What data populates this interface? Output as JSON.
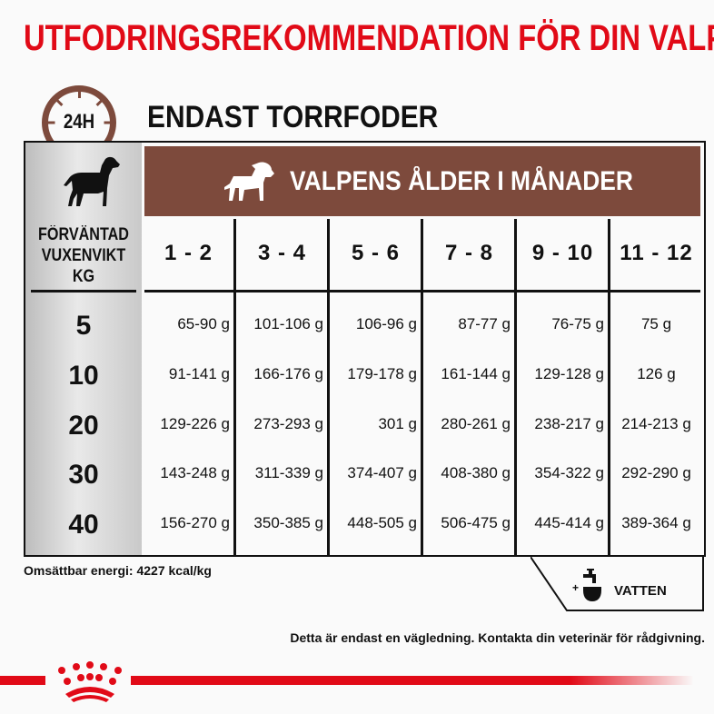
{
  "title": "UTFODRINGSREKOMMENDATION FÖR DIN VALP",
  "clock_label": "24H",
  "subtitle": "ENDAST TORRFODER",
  "header_band": "VALPENS ÅLDER I MÅNADER",
  "weight_header": [
    "FÖRVÄNTAD",
    "VUXENVIKT",
    "KG"
  ],
  "age_columns": [
    "1 - 2",
    "3 - 4",
    "5 - 6",
    "7 - 8",
    "9 - 10",
    "11 - 12"
  ],
  "rows": [
    {
      "weight": "5",
      "values": [
        "65-90 g",
        "101-106 g",
        "106-96 g",
        "87-77 g",
        "76-75 g",
        "75 g"
      ]
    },
    {
      "weight": "10",
      "values": [
        "91-141 g",
        "166-176 g",
        "179-178 g",
        "161-144 g",
        "129-128 g",
        "126 g"
      ]
    },
    {
      "weight": "20",
      "values": [
        "129-226 g",
        "273-293 g",
        "301 g",
        "280-261 g",
        "238-217 g",
        "214-213 g"
      ]
    },
    {
      "weight": "30",
      "values": [
        "143-248 g",
        "311-339 g",
        "374-407 g",
        "408-380 g",
        "354-322 g",
        "292-290 g"
      ]
    },
    {
      "weight": "40",
      "values": [
        "156-270 g",
        "350-385 g",
        "448-505 g",
        "506-475 g",
        "445-414 g",
        "389-364 g"
      ]
    }
  ],
  "energy": "Omsättbar energi: 4227 kcal/kg",
  "water_label": "VATTEN",
  "note": "Detta är endast en vägledning. Kontakta din veterinär för rådgivning.",
  "colors": {
    "brand_red": "#e10a17",
    "brown": "#7d4a3c"
  }
}
